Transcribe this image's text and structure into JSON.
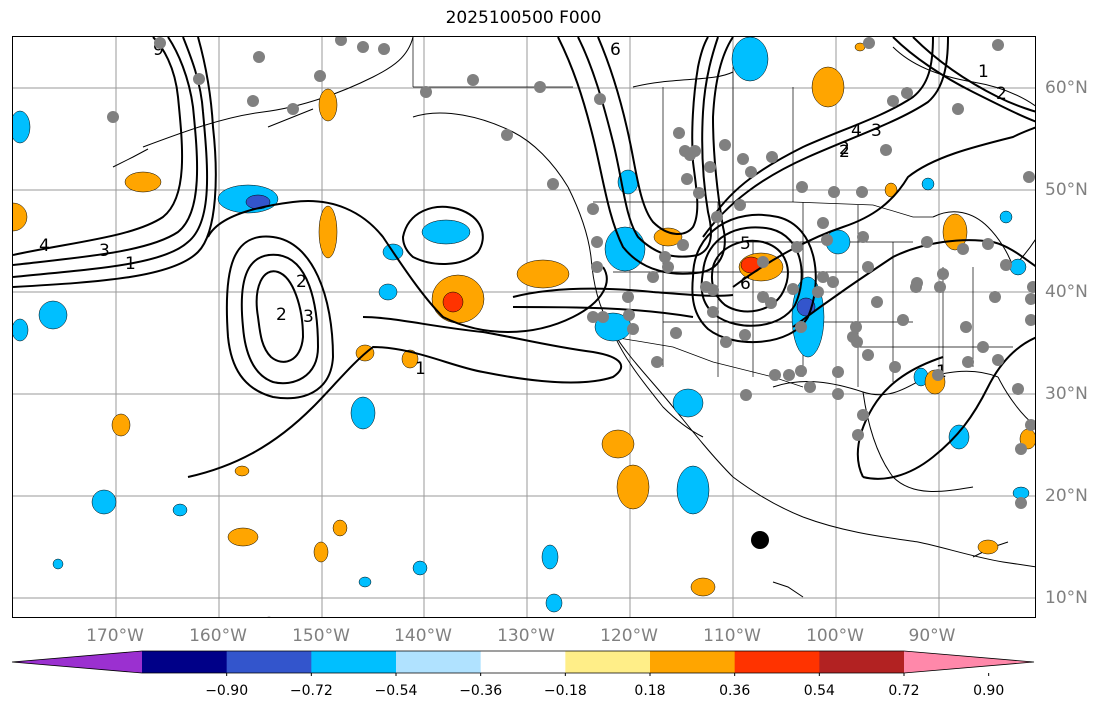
{
  "title": "2025100500 F000",
  "lon_labels": [
    "170°W",
    "160°W",
    "150°W",
    "140°W",
    "130°W",
    "120°W",
    "110°W",
    "100°W",
    "90°W"
  ],
  "lat_labels": [
    "60°N",
    "50°N",
    "40°N",
    "30°N",
    "20°N",
    "10°N"
  ],
  "colorbar": {
    "colors": [
      "#9b30d0",
      "#000088",
      "#3355cc",
      "#00bfff",
      "#b0e2ff",
      "#ffffff",
      "#ffee88",
      "#ffa500",
      "#ff3300",
      "#b22222",
      "#ff88aa"
    ],
    "ticks": [
      "−0.90",
      "−0.72",
      "−0.54",
      "−0.36",
      "−0.18",
      "0.18",
      "0.36",
      "0.54",
      "0.72",
      "0.90"
    ]
  },
  "contour_labels": [
    "4",
    "3",
    "1",
    "2",
    "3",
    "2",
    "1",
    "9",
    "6",
    "1",
    "2",
    "2",
    "4",
    "3",
    "2",
    "5",
    "6",
    "1"
  ],
  "marker_color": "#808080",
  "storm_marker_color": "#000000"
}
